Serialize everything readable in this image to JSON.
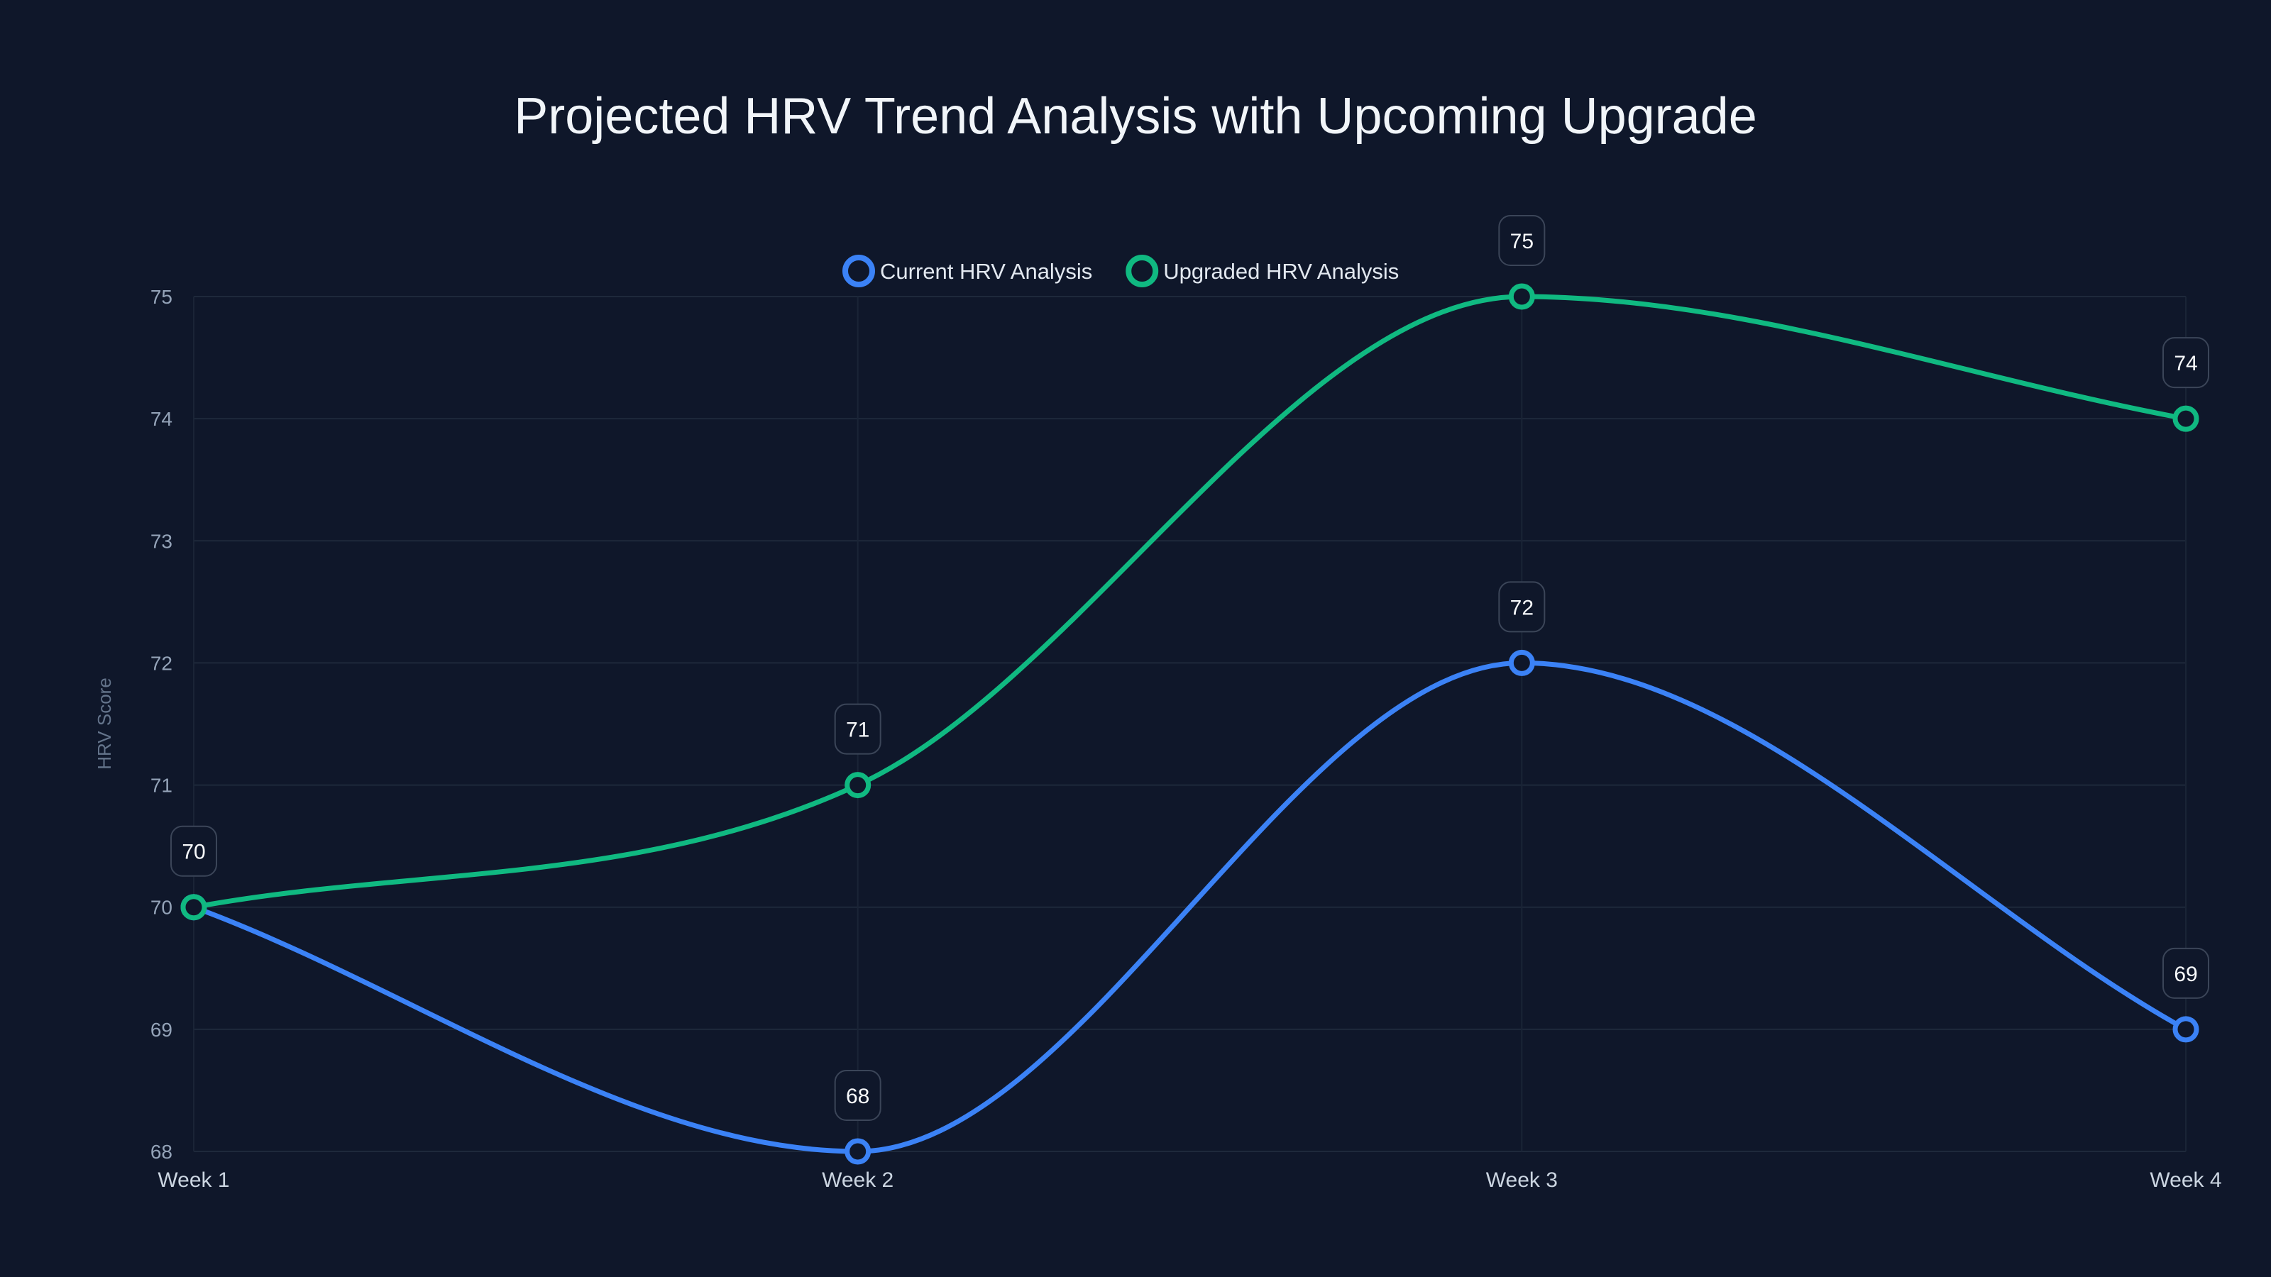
{
  "chart_data": {
    "type": "line",
    "title": "Projected HRV Trend Analysis with Upcoming Upgrade",
    "xlabel": "",
    "ylabel": "HRV Score",
    "categories": [
      "Week 1",
      "Week 2",
      "Week 3",
      "Week 4"
    ],
    "ylim": [
      68,
      75
    ],
    "yticks": [
      68,
      69,
      70,
      71,
      72,
      73,
      74,
      75
    ],
    "grid": true,
    "legend_position": "top-center",
    "series": [
      {
        "name": "Current HRV Analysis",
        "color": "#3b82f6",
        "values": [
          70,
          68,
          72,
          69
        ]
      },
      {
        "name": "Upgraded HRV Analysis",
        "color": "#10b981",
        "values": [
          70,
          71,
          75,
          74
        ]
      }
    ]
  }
}
